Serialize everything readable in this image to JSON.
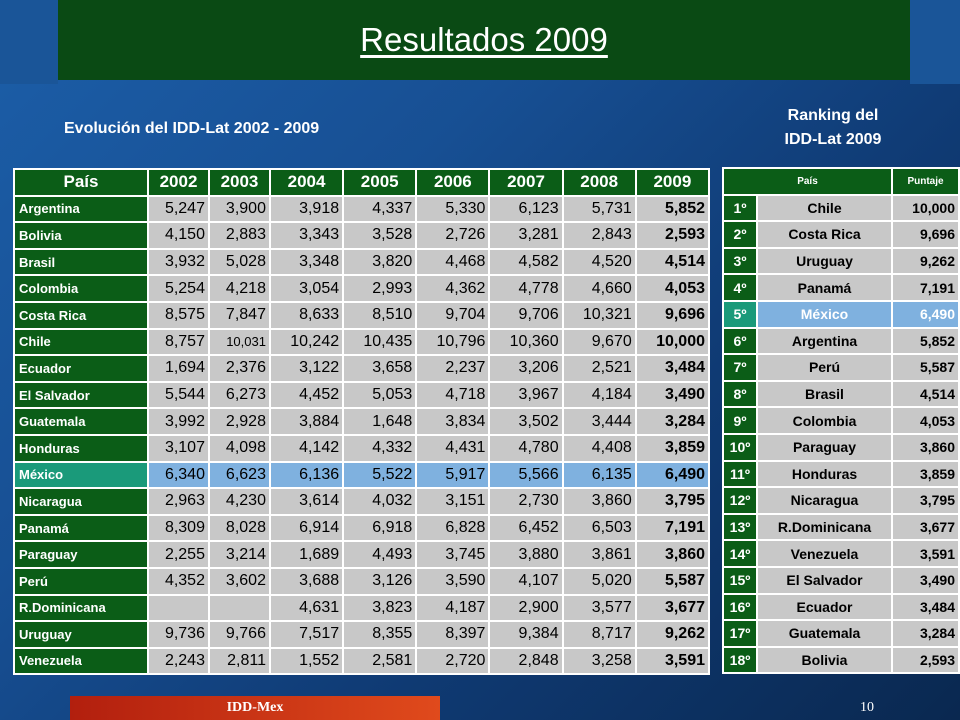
{
  "slide": {
    "title": "Resultados 2009",
    "subtitle": "Evolución del IDD-Lat 2002 - 2009",
    "ranking_title_line1": "Ranking del",
    "ranking_title_line2": "IDD-Lat 2009",
    "footer": "IDD-Mex",
    "page_number": "10"
  },
  "main_table": {
    "headers": [
      "País",
      "2002",
      "2003",
      "2004",
      "2005",
      "2006",
      "2007",
      "2008",
      "2009"
    ],
    "highlight_row": "México",
    "rows": [
      {
        "country": "Argentina",
        "values": [
          "5,247",
          "3,900",
          "3,918",
          "4,337",
          "5,330",
          "6,123",
          "5,731",
          "5,852"
        ]
      },
      {
        "country": "Bolivia",
        "values": [
          "4,150",
          "2,883",
          "3,343",
          "3,528",
          "2,726",
          "3,281",
          "2,843",
          "2,593"
        ]
      },
      {
        "country": "Brasil",
        "values": [
          "3,932",
          "5,028",
          "3,348",
          "3,820",
          "4,468",
          "4,582",
          "4,520",
          "4,514"
        ]
      },
      {
        "country": "Colombia",
        "values": [
          "5,254",
          "4,218",
          "3,054",
          "2,993",
          "4,362",
          "4,778",
          "4,660",
          "4,053"
        ]
      },
      {
        "country": "Costa Rica",
        "values": [
          "8,575",
          "7,847",
          "8,633",
          "8,510",
          "9,704",
          "9,706",
          "10,321",
          "9,696"
        ]
      },
      {
        "country": "Chile",
        "values": [
          "8,757",
          "10,031",
          "10,242",
          "10,435",
          "10,796",
          "10,360",
          "9,670",
          "10,000"
        ]
      },
      {
        "country": "Ecuador",
        "values": [
          "1,694",
          "2,376",
          "3,122",
          "3,658",
          "2,237",
          "3,206",
          "2,521",
          "3,484"
        ]
      },
      {
        "country": "El Salvador",
        "values": [
          "5,544",
          "6,273",
          "4,452",
          "5,053",
          "4,718",
          "3,967",
          "4,184",
          "3,490"
        ]
      },
      {
        "country": "Guatemala",
        "values": [
          "3,992",
          "2,928",
          "3,884",
          "1,648",
          "3,834",
          "3,502",
          "3,444",
          "3,284"
        ]
      },
      {
        "country": "Honduras",
        "values": [
          "3,107",
          "4,098",
          "4,142",
          "4,332",
          "4,431",
          "4,780",
          "4,408",
          "3,859"
        ]
      },
      {
        "country": "México",
        "values": [
          "6,340",
          "6,623",
          "6,136",
          "5,522",
          "5,917",
          "5,566",
          "6,135",
          "6,490"
        ]
      },
      {
        "country": "Nicaragua",
        "values": [
          "2,963",
          "4,230",
          "3,614",
          "4,032",
          "3,151",
          "2,730",
          "3,860",
          "3,795"
        ]
      },
      {
        "country": "Panamá",
        "values": [
          "8,309",
          "8,028",
          "6,914",
          "6,918",
          "6,828",
          "6,452",
          "6,503",
          "7,191"
        ]
      },
      {
        "country": "Paraguay",
        "values": [
          "2,255",
          "3,214",
          "1,689",
          "4,493",
          "3,745",
          "3,880",
          "3,861",
          "3,860"
        ]
      },
      {
        "country": "Perú",
        "values": [
          "4,352",
          "3,602",
          "3,688",
          "3,126",
          "3,590",
          "4,107",
          "5,020",
          "5,587"
        ]
      },
      {
        "country": "R.Dominicana",
        "values": [
          "",
          "",
          "4,631",
          "3,823",
          "4,187",
          "2,900",
          "3,577",
          "3,677"
        ]
      },
      {
        "country": "Uruguay",
        "values": [
          "9,736",
          "9,766",
          "7,517",
          "8,355",
          "8,397",
          "9,384",
          "8,717",
          "9,262"
        ]
      },
      {
        "country": "Venezuela",
        "values": [
          "2,243",
          "2,811",
          "1,552",
          "2,581",
          "2,720",
          "2,848",
          "3,258",
          "3,591"
        ]
      }
    ]
  },
  "ranking_table": {
    "headers": [
      "País",
      "Puntaje"
    ],
    "highlight_row": "México",
    "rows": [
      {
        "pos": "1º",
        "country": "Chile",
        "score": "10,000"
      },
      {
        "pos": "2º",
        "country": "Costa Rica",
        "score": "9,696"
      },
      {
        "pos": "3º",
        "country": "Uruguay",
        "score": "9,262"
      },
      {
        "pos": "4º",
        "country": "Panamá",
        "score": "7,191"
      },
      {
        "pos": "5º",
        "country": "México",
        "score": "6,490"
      },
      {
        "pos": "6º",
        "country": "Argentina",
        "score": "5,852"
      },
      {
        "pos": "7º",
        "country": "Perú",
        "score": "5,587"
      },
      {
        "pos": "8º",
        "country": "Brasil",
        "score": "4,514"
      },
      {
        "pos": "9º",
        "country": "Colombia",
        "score": "4,053"
      },
      {
        "pos": "10º",
        "country": "Paraguay",
        "score": "3,860"
      },
      {
        "pos": "11º",
        "country": "Honduras",
        "score": "3,859"
      },
      {
        "pos": "12º",
        "country": "Nicaragua",
        "score": "3,795"
      },
      {
        "pos": "13º",
        "country": "R.Dominicana",
        "score": "3,677"
      },
      {
        "pos": "14º",
        "country": "Venezuela",
        "score": "3,591"
      },
      {
        "pos": "15º",
        "country": "El Salvador",
        "score": "3,490"
      },
      {
        "pos": "16º",
        "country": "Ecuador",
        "score": "3,484"
      },
      {
        "pos": "17º",
        "country": "Guatemala",
        "score": "3,284"
      },
      {
        "pos": "18º",
        "country": "Bolivia",
        "score": "2,593"
      }
    ]
  },
  "colors": {
    "header_green": "#0b5d17",
    "cell_gray": "#c8c8c8",
    "highlight_teal": "#1a9a7a",
    "highlight_blue": "#7fb1df",
    "footer_red": "#b21f0e"
  }
}
